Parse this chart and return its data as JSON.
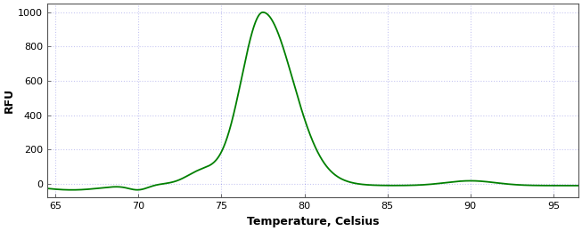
{
  "xlabel": "Temperature, Celsius",
  "ylabel": "RFU",
  "xlim": [
    64.5,
    96.5
  ],
  "ylim": [
    -80,
    1050
  ],
  "xticks": [
    65,
    70,
    75,
    80,
    85,
    90,
    95
  ],
  "yticks": [
    0,
    200,
    400,
    600,
    800,
    1000
  ],
  "line_color": "#008000",
  "line_width": 1.3,
  "background_color": "#ffffff",
  "plot_background": "#ffffff",
  "grid_color": "#2222cc",
  "grid_alpha": 0.25,
  "grid_linestyle": ":",
  "xlabel_fontsize": 9,
  "ylabel_fontsize": 9,
  "tick_fontsize": 8,
  "spine_color": "#555555",
  "tick_color": "#333333"
}
